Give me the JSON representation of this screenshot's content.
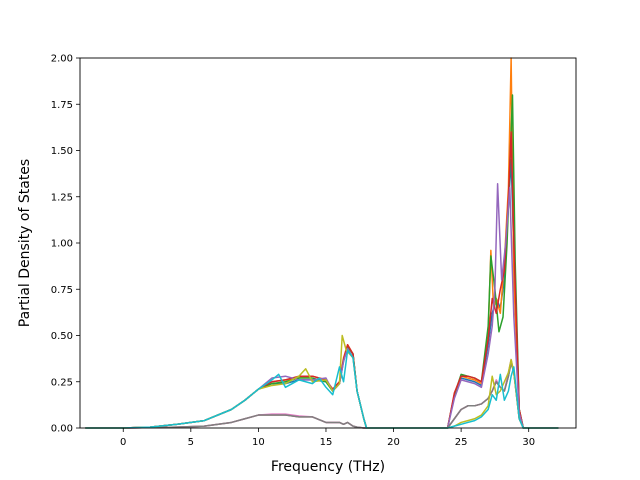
{
  "chart_data": {
    "type": "line",
    "title": "",
    "xlabel": "Frequency (THz)",
    "ylabel": "Partial Density of States",
    "xlim": [
      -3.2,
      33.5
    ],
    "ylim": [
      0,
      2.0
    ],
    "xticks": [
      0,
      5,
      10,
      15,
      20,
      25,
      30
    ],
    "yticks": [
      0.0,
      0.25,
      0.5,
      0.75,
      1.0,
      1.25,
      1.5,
      1.75,
      2.0
    ],
    "ytick_labels": [
      "0.00",
      "0.25",
      "0.50",
      "0.75",
      "1.00",
      "1.25",
      "1.50",
      "1.75",
      "2.00"
    ],
    "grid": false,
    "legend": "none",
    "series": [
      {
        "color": "#1f77b4",
        "x": [
          -2.8,
          0,
          2,
          4,
          6,
          8,
          9,
          10,
          11,
          12,
          13,
          14,
          15,
          15.5,
          16,
          16.3,
          16.6,
          17,
          17.3,
          17.8,
          18,
          24,
          24.5,
          25,
          25.5,
          26,
          26.5,
          27,
          27.3,
          27.6,
          27.9,
          28.2,
          28.5,
          28.7,
          28.9,
          29.3,
          29.6,
          32.2
        ],
        "y": [
          0,
          0,
          0.005,
          0.02,
          0.04,
          0.1,
          0.15,
          0.21,
          0.24,
          0.24,
          0.26,
          0.26,
          0.25,
          0.2,
          0.24,
          0.36,
          0.44,
          0.4,
          0.2,
          0.05,
          0,
          0,
          0.18,
          0.27,
          0.26,
          0.25,
          0.23,
          0.45,
          0.62,
          0.7,
          0.65,
          0.8,
          1.2,
          1.45,
          0.95,
          0.1,
          0,
          0
        ]
      },
      {
        "color": "#ff7f0e",
        "x": [
          -2.8,
          0,
          2,
          4,
          6,
          8,
          9,
          10,
          11,
          12,
          13,
          14,
          15,
          15.5,
          16,
          16.3,
          16.6,
          17,
          17.3,
          17.8,
          18,
          24,
          24.5,
          25,
          25.5,
          26,
          26.5,
          27,
          27.2,
          27.4,
          27.6,
          27.9,
          28.2,
          28.5,
          28.7,
          28.9,
          29.3,
          29.6,
          32.2
        ],
        "y": [
          0,
          0,
          0.005,
          0.02,
          0.04,
          0.1,
          0.15,
          0.21,
          0.25,
          0.26,
          0.27,
          0.28,
          0.26,
          0.21,
          0.25,
          0.38,
          0.45,
          0.4,
          0.2,
          0.05,
          0,
          0,
          0.18,
          0.28,
          0.27,
          0.26,
          0.24,
          0.5,
          0.96,
          0.65,
          0.7,
          0.62,
          0.9,
          1.3,
          2.0,
          0.8,
          0.1,
          0,
          0
        ]
      },
      {
        "color": "#2ca02c",
        "x": [
          -2.8,
          0,
          2,
          4,
          6,
          8,
          9,
          10,
          11,
          12,
          13,
          14,
          15,
          15.5,
          16,
          16.3,
          16.6,
          17,
          17.3,
          17.8,
          18,
          24,
          24.5,
          25,
          25.5,
          26,
          26.5,
          27,
          27.2,
          27.5,
          27.8,
          28.1,
          28.4,
          28.6,
          28.8,
          29.0,
          29.3,
          29.6,
          32.2
        ],
        "y": [
          0,
          0,
          0.005,
          0.02,
          0.04,
          0.1,
          0.15,
          0.21,
          0.24,
          0.25,
          0.27,
          0.27,
          0.25,
          0.2,
          0.24,
          0.37,
          0.44,
          0.4,
          0.2,
          0.05,
          0,
          0,
          0.18,
          0.29,
          0.28,
          0.27,
          0.25,
          0.55,
          0.93,
          0.75,
          0.52,
          0.6,
          1.0,
          1.4,
          1.8,
          0.9,
          0.1,
          0,
          0
        ]
      },
      {
        "color": "#d62728",
        "x": [
          -2.8,
          0,
          2,
          4,
          6,
          8,
          9,
          10,
          11,
          12,
          13,
          14,
          15,
          15.5,
          16,
          16.3,
          16.6,
          17,
          17.3,
          17.8,
          18,
          24,
          24.5,
          25,
          25.5,
          26,
          26.5,
          27,
          27.3,
          27.6,
          27.9,
          28.2,
          28.5,
          28.7,
          28.9,
          29.3,
          29.6,
          32.2
        ],
        "y": [
          0,
          0,
          0.005,
          0.02,
          0.04,
          0.1,
          0.15,
          0.21,
          0.25,
          0.26,
          0.28,
          0.28,
          0.26,
          0.21,
          0.25,
          0.37,
          0.45,
          0.4,
          0.2,
          0.05,
          0,
          0,
          0.19,
          0.28,
          0.28,
          0.27,
          0.25,
          0.48,
          0.7,
          0.62,
          0.75,
          0.85,
          1.25,
          1.6,
          1.0,
          0.1,
          0,
          0
        ]
      },
      {
        "color": "#9467bd",
        "x": [
          -2.8,
          0,
          2,
          4,
          6,
          8,
          9,
          10,
          11,
          12,
          13,
          14,
          15,
          15.5,
          16,
          16.3,
          16.6,
          17,
          17.3,
          17.8,
          18,
          24,
          24.5,
          25,
          25.5,
          26,
          26.5,
          27,
          27.3,
          27.5,
          27.7,
          28.0,
          28.3,
          28.6,
          28.9,
          29.3,
          29.6,
          32.2
        ],
        "y": [
          0,
          0,
          0.005,
          0.02,
          0.04,
          0.1,
          0.15,
          0.21,
          0.27,
          0.28,
          0.26,
          0.26,
          0.27,
          0.2,
          0.24,
          0.36,
          0.43,
          0.38,
          0.2,
          0.05,
          0,
          0,
          0.16,
          0.26,
          0.25,
          0.24,
          0.22,
          0.4,
          0.55,
          0.75,
          1.32,
          0.8,
          1.0,
          1.3,
          0.6,
          0.08,
          0,
          0
        ]
      },
      {
        "color": "#8c564b",
        "x": [
          -2.8,
          0,
          2,
          4,
          6,
          8,
          9,
          10,
          11,
          12,
          13,
          14,
          15,
          16,
          16.3,
          16.6,
          17,
          17.3,
          17.8,
          18,
          24,
          24.5,
          25,
          25.5,
          26,
          26.5,
          27,
          27.3,
          27.6,
          27.9,
          28.2,
          28.5,
          28.7,
          28.9,
          29.3,
          29.6,
          32.2
        ],
        "y": [
          0,
          0,
          0.002,
          0.005,
          0.01,
          0.03,
          0.05,
          0.07,
          0.07,
          0.07,
          0.06,
          0.06,
          0.03,
          0.03,
          0.02,
          0.03,
          0.01,
          0.005,
          0,
          0,
          0,
          0.05,
          0.1,
          0.12,
          0.12,
          0.13,
          0.16,
          0.2,
          0.25,
          0.22,
          0.2,
          0.28,
          0.36,
          0.3,
          0.05,
          0,
          0
        ]
      },
      {
        "color": "#e377c2",
        "x": [
          -2.8,
          0,
          2,
          4,
          6,
          8,
          9,
          10,
          11,
          12,
          13,
          14,
          15,
          16,
          16.3,
          16.6,
          17,
          17.3,
          17.8,
          18,
          24,
          24.5,
          25,
          25.5,
          26,
          26.5,
          27,
          27.3,
          27.6,
          27.9,
          28.2,
          28.5,
          28.7,
          28.9,
          29.3,
          29.6,
          32.2
        ],
        "y": [
          0,
          0,
          0.002,
          0.005,
          0.01,
          0.03,
          0.05,
          0.07,
          0.075,
          0.075,
          0.065,
          0.06,
          0.03,
          0.03,
          0.02,
          0.03,
          0.01,
          0.005,
          0,
          0,
          0,
          0.05,
          0.1,
          0.12,
          0.12,
          0.13,
          0.16,
          0.2,
          0.26,
          0.22,
          0.2,
          0.3,
          0.37,
          0.3,
          0.05,
          0,
          0
        ]
      },
      {
        "color": "#7f7f7f",
        "x": [
          -2.8,
          0,
          2,
          4,
          6,
          8,
          9,
          10,
          11,
          12,
          13,
          14,
          15,
          16,
          16.3,
          16.6,
          17,
          17.3,
          17.8,
          18,
          24,
          24.5,
          25,
          25.5,
          26,
          26.5,
          27,
          27.3,
          27.6,
          27.9,
          28.2,
          28.5,
          28.7,
          28.9,
          29.3,
          29.6,
          32.2
        ],
        "y": [
          0,
          0,
          0.002,
          0.005,
          0.01,
          0.03,
          0.05,
          0.07,
          0.07,
          0.07,
          0.06,
          0.06,
          0.03,
          0.03,
          0.02,
          0.03,
          0.01,
          0.005,
          0,
          0,
          0,
          0.05,
          0.1,
          0.12,
          0.12,
          0.13,
          0.16,
          0.2,
          0.25,
          0.22,
          0.2,
          0.28,
          0.35,
          0.3,
          0.05,
          0,
          0
        ]
      },
      {
        "color": "#bcbd22",
        "x": [
          -2.8,
          0,
          2,
          4,
          6,
          8,
          9,
          10,
          11,
          12,
          13,
          13.5,
          14,
          15,
          15.5,
          16,
          16.2,
          16.5,
          17,
          17.3,
          17.8,
          18,
          24,
          24.5,
          25,
          25.5,
          26,
          26.5,
          27,
          27.3,
          27.6,
          27.9,
          28.2,
          28.5,
          28.7,
          28.9,
          29.3,
          29.6,
          32.2
        ],
        "y": [
          0,
          0,
          0.005,
          0.02,
          0.04,
          0.1,
          0.15,
          0.21,
          0.23,
          0.24,
          0.28,
          0.32,
          0.25,
          0.26,
          0.2,
          0.24,
          0.5,
          0.42,
          0.38,
          0.2,
          0.05,
          0,
          0,
          0.01,
          0.03,
          0.04,
          0.05,
          0.07,
          0.12,
          0.28,
          0.18,
          0.2,
          0.25,
          0.3,
          0.37,
          0.3,
          0.05,
          0,
          0
        ]
      },
      {
        "color": "#17becf",
        "x": [
          -2.8,
          0,
          2,
          4,
          6,
          8,
          9,
          10,
          11,
          11.5,
          12,
          13,
          14,
          14.5,
          15,
          15.5,
          16,
          16.3,
          16.6,
          17,
          17.3,
          17.8,
          18,
          24,
          24.5,
          25,
          25.5,
          26,
          26.5,
          27,
          27.3,
          27.6,
          27.9,
          28.2,
          28.5,
          28.7,
          28.9,
          29.3,
          29.6,
          32.2
        ],
        "y": [
          0,
          0,
          0.005,
          0.02,
          0.04,
          0.1,
          0.15,
          0.21,
          0.26,
          0.29,
          0.22,
          0.26,
          0.24,
          0.27,
          0.22,
          0.18,
          0.33,
          0.25,
          0.42,
          0.38,
          0.2,
          0.05,
          0,
          0,
          0.01,
          0.02,
          0.03,
          0.04,
          0.06,
          0.1,
          0.18,
          0.15,
          0.29,
          0.15,
          0.2,
          0.28,
          0.33,
          0.05,
          0,
          0
        ]
      }
    ]
  }
}
